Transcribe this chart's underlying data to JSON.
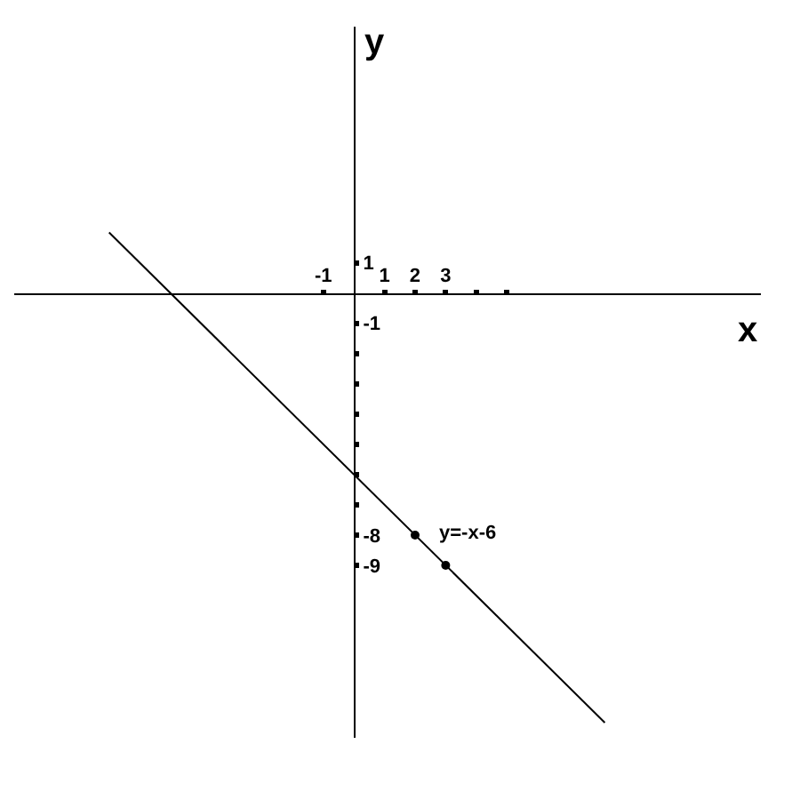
{
  "chart_data": {
    "type": "line",
    "xlabel": "x",
    "ylabel": "y",
    "series": [
      {
        "name": "y=-x-6",
        "color": "#000000",
        "x": [
          -8,
          8.2
        ],
        "values": [
          2,
          -14.2
        ]
      },
      {
        "type": "scatter",
        "marker": "circle",
        "color": "#000000",
        "x": [
          2,
          3
        ],
        "values": [
          -8,
          -9
        ]
      }
    ],
    "xlim": [
      -11.1,
      13.3
    ],
    "ylim": [
      -14.7,
      8.8
    ],
    "xticks": [
      -1,
      1,
      2,
      3,
      {
        "value": 4,
        "label": null
      },
      {
        "value": 5,
        "label": null
      }
    ],
    "yticks": [
      1,
      -1,
      {
        "value": -2,
        "label": null
      },
      {
        "value": -3,
        "label": null
      },
      {
        "value": -4,
        "label": null
      },
      {
        "value": -5,
        "label": null
      },
      {
        "value": -6,
        "label": null
      },
      {
        "value": -7,
        "label": null
      },
      -8,
      -9
    ],
    "legend": false
  }
}
